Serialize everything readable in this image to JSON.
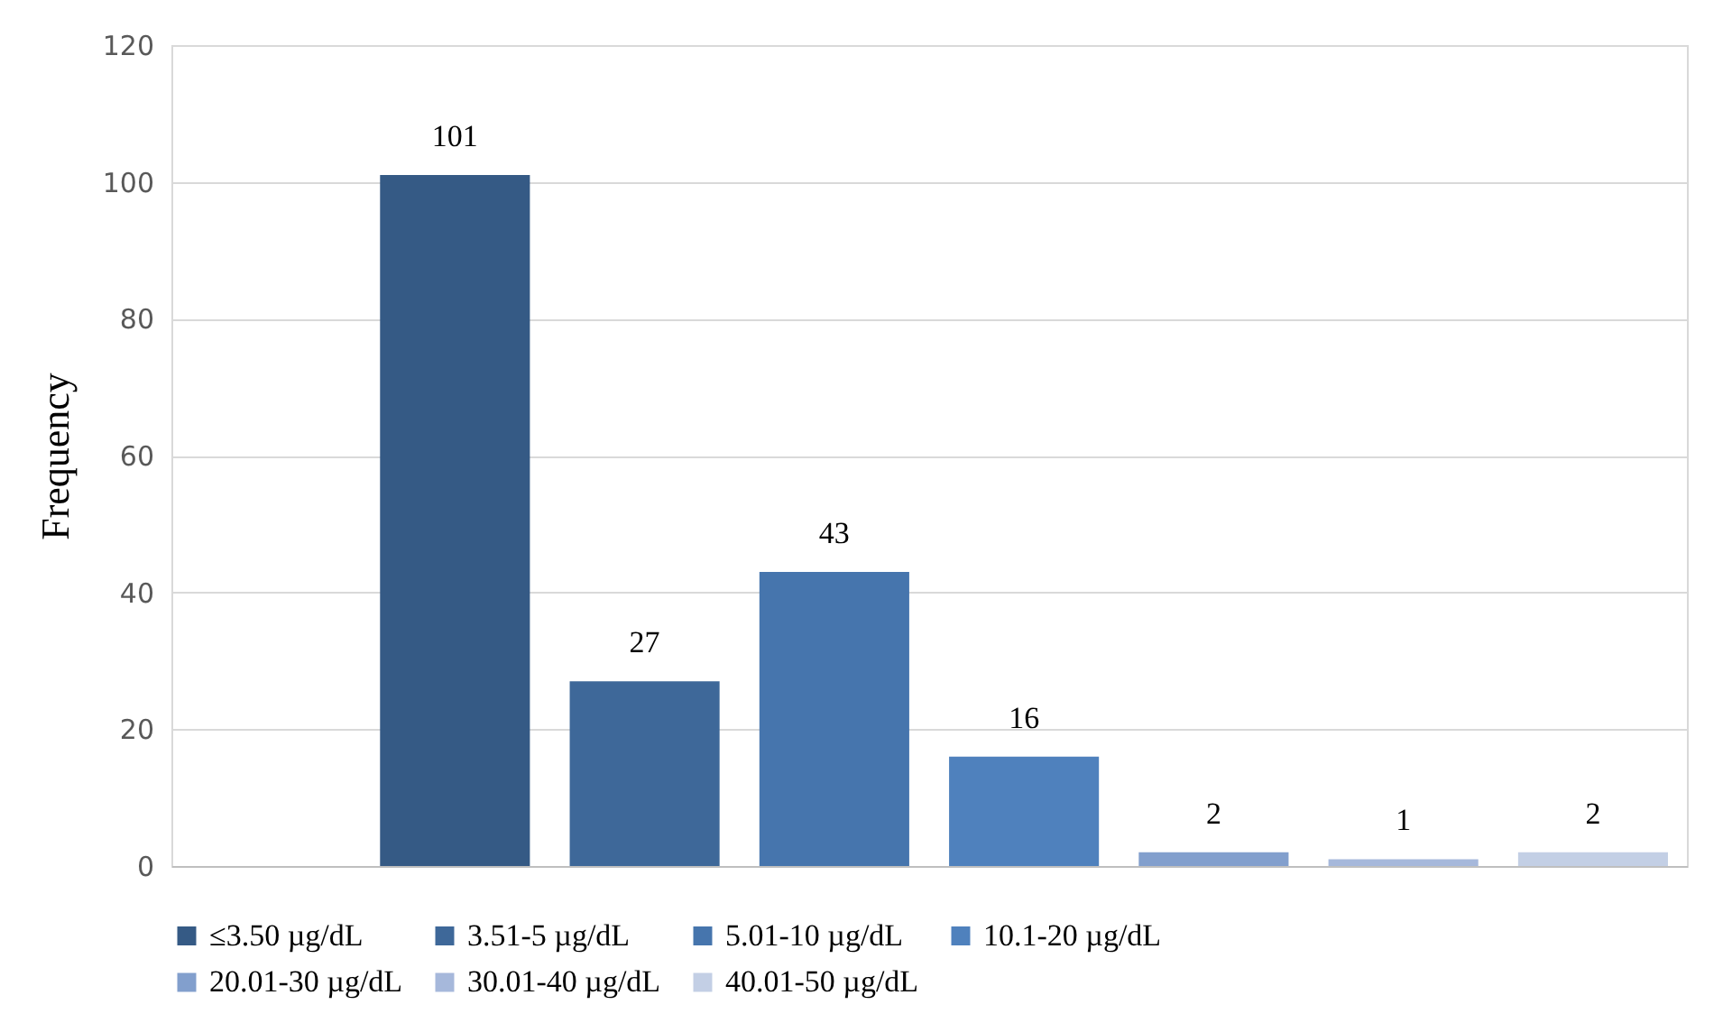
{
  "chart_data": {
    "type": "bar",
    "ylabel": "Frequency",
    "categories": [
      null,
      null,
      null,
      null,
      null,
      null,
      null,
      null
    ],
    "series": [
      {
        "name": "≤3.50 µg/dL",
        "color": "#355a85",
        "values": [
          null,
          101,
          null,
          null,
          null,
          null,
          null,
          null
        ]
      },
      {
        "name": "3.51-5 µg/dL",
        "color": "#3e6899",
        "values": [
          null,
          null,
          27,
          null,
          null,
          null,
          null,
          null
        ]
      },
      {
        "name": "5.01-10 µg/dL",
        "color": "#4675ad",
        "values": [
          null,
          null,
          null,
          43,
          null,
          null,
          null,
          null
        ]
      },
      {
        "name": "10.1-20 µg/dL",
        "color": "#4f81bd",
        "values": [
          null,
          null,
          null,
          null,
          16,
          null,
          null,
          null
        ]
      },
      {
        "name": "20.01-30 µg/dL",
        "color": "#829fcd",
        "values": [
          null,
          null,
          null,
          null,
          null,
          2,
          null,
          null
        ]
      },
      {
        "name": "30.01-40 µg/dL",
        "color": "#a6b8db",
        "values": [
          null,
          null,
          null,
          null,
          null,
          null,
          1,
          null
        ]
      },
      {
        "name": "40.01-50 µg/dL",
        "color": "#c3cfe5",
        "values": [
          null,
          null,
          null,
          null,
          null,
          null,
          null,
          2
        ]
      }
    ],
    "ylim": [
      0,
      120
    ],
    "yticks": [
      0,
      20,
      40,
      60,
      80,
      100,
      120
    ],
    "grid": "y",
    "legend": "bottom",
    "data_labels": true
  }
}
